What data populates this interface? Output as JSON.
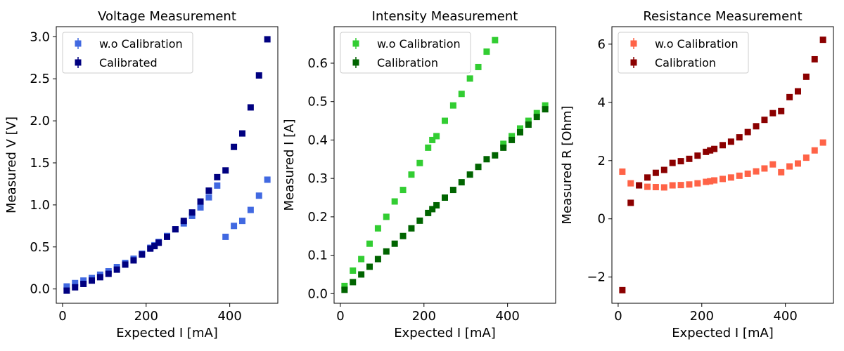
{
  "chart_data": [
    {
      "type": "scatter",
      "title": "Voltage Measurement",
      "xlabel": "Expected I [mA]",
      "ylabel": "Measured V [V]",
      "xlim": [
        -15,
        515
      ],
      "ylim": [
        -0.17,
        3.12
      ],
      "xticks": [
        0,
        200,
        400
      ],
      "yticks": [
        0.0,
        0.5,
        1.0,
        1.5,
        2.0,
        2.5,
        3.0
      ],
      "ytick_labels": [
        "0.0",
        "0.5",
        "1.0",
        "1.5",
        "2.0",
        "2.5",
        "3.0"
      ],
      "legend_position": "upper-left",
      "series": [
        {
          "name": "w.o Calibration",
          "color": "#4169e1",
          "x": [
            10,
            30,
            50,
            70,
            90,
            110,
            130,
            150,
            170,
            190,
            210,
            220,
            230,
            250,
            270,
            290,
            310,
            330,
            350,
            370,
            390,
            410,
            430,
            450,
            470,
            490
          ],
          "y": [
            0.03,
            0.07,
            0.1,
            0.13,
            0.17,
            0.21,
            0.26,
            0.31,
            0.36,
            0.42,
            0.49,
            0.52,
            0.56,
            0.63,
            0.71,
            0.78,
            0.87,
            0.97,
            1.09,
            1.23,
            0.62,
            0.75,
            0.81,
            0.94,
            1.11,
            1.3
          ]
        },
        {
          "name": "Calibrated",
          "color": "#000080",
          "x": [
            10,
            30,
            50,
            70,
            90,
            110,
            130,
            150,
            170,
            190,
            210,
            220,
            230,
            250,
            270,
            290,
            310,
            330,
            350,
            370,
            390,
            410,
            430,
            450,
            470,
            490
          ],
          "y": [
            -0.02,
            0.02,
            0.06,
            0.1,
            0.14,
            0.18,
            0.23,
            0.29,
            0.34,
            0.41,
            0.48,
            0.51,
            0.55,
            0.62,
            0.71,
            0.81,
            0.91,
            1.04,
            1.17,
            1.33,
            1.41,
            1.69,
            1.85,
            2.16,
            2.54,
            2.97
          ]
        }
      ]
    },
    {
      "type": "scatter",
      "title": "Intensity Measurement",
      "xlabel": "Expected I [mA]",
      "ylabel": "Measured I [A]",
      "xlim": [
        -15,
        515
      ],
      "ylim": [
        -0.025,
        0.695
      ],
      "xticks": [
        0,
        200,
        400
      ],
      "yticks": [
        0.0,
        0.1,
        0.2,
        0.3,
        0.4,
        0.5,
        0.6
      ],
      "ytick_labels": [
        "0.0",
        "0.1",
        "0.2",
        "0.3",
        "0.4",
        "0.5",
        "0.6"
      ],
      "legend_position": "upper-left",
      "series": [
        {
          "name": "w.o Calibration",
          "color": "#32cd32",
          "x": [
            10,
            30,
            50,
            70,
            90,
            110,
            130,
            150,
            170,
            190,
            210,
            220,
            230,
            250,
            270,
            290,
            310,
            330,
            350,
            370,
            390,
            410,
            430,
            450,
            470,
            490
          ],
          "y": [
            0.02,
            0.06,
            0.09,
            0.13,
            0.17,
            0.2,
            0.24,
            0.27,
            0.31,
            0.34,
            0.38,
            0.4,
            0.41,
            0.45,
            0.49,
            0.52,
            0.56,
            0.59,
            0.63,
            0.66,
            0.39,
            0.41,
            0.43,
            0.45,
            0.47,
            0.49
          ]
        },
        {
          "name": "Calibration",
          "color": "#006400",
          "x": [
            10,
            30,
            50,
            70,
            90,
            110,
            130,
            150,
            170,
            190,
            210,
            220,
            230,
            250,
            270,
            290,
            310,
            330,
            350,
            370,
            390,
            410,
            430,
            450,
            470,
            490
          ],
          "y": [
            0.01,
            0.03,
            0.05,
            0.07,
            0.09,
            0.11,
            0.13,
            0.15,
            0.17,
            0.19,
            0.21,
            0.22,
            0.23,
            0.25,
            0.27,
            0.29,
            0.31,
            0.33,
            0.35,
            0.36,
            0.38,
            0.4,
            0.42,
            0.44,
            0.46,
            0.48
          ]
        }
      ]
    },
    {
      "type": "scatter",
      "title": "Resistance Measurement",
      "xlabel": "Expected I [mA]",
      "ylabel": "Measured R [Ohm]",
      "xlim": [
        -15,
        515
      ],
      "ylim": [
        -2.9,
        6.6
      ],
      "xticks": [
        0,
        200,
        400
      ],
      "yticks": [
        -2,
        0,
        2,
        4,
        6
      ],
      "ytick_labels": [
        "−2",
        "0",
        "2",
        "4",
        "6"
      ],
      "legend_position": "upper-left",
      "series": [
        {
          "name": "w.o Calibration",
          "color": "#ff6347",
          "x": [
            10,
            30,
            50,
            70,
            90,
            110,
            130,
            150,
            170,
            190,
            210,
            220,
            230,
            250,
            270,
            290,
            310,
            330,
            350,
            370,
            390,
            410,
            430,
            450,
            470,
            490
          ],
          "y": [
            1.62,
            1.22,
            1.15,
            1.1,
            1.09,
            1.08,
            1.15,
            1.16,
            1.18,
            1.22,
            1.27,
            1.29,
            1.32,
            1.37,
            1.42,
            1.48,
            1.55,
            1.63,
            1.73,
            1.87,
            1.6,
            1.8,
            1.9,
            2.1,
            2.35,
            2.62
          ]
        },
        {
          "name": "Calibration",
          "color": "#8b0000",
          "x": [
            10,
            30,
            50,
            70,
            90,
            110,
            130,
            150,
            170,
            190,
            210,
            220,
            230,
            250,
            270,
            290,
            310,
            330,
            350,
            370,
            390,
            410,
            430,
            450,
            470,
            490
          ],
          "y": [
            -2.45,
            0.55,
            1.15,
            1.42,
            1.58,
            1.68,
            1.92,
            1.98,
            2.06,
            2.17,
            2.3,
            2.35,
            2.4,
            2.53,
            2.65,
            2.8,
            2.98,
            3.18,
            3.4,
            3.63,
            3.7,
            4.18,
            4.38,
            4.88,
            5.48,
            6.15
          ]
        }
      ]
    }
  ]
}
